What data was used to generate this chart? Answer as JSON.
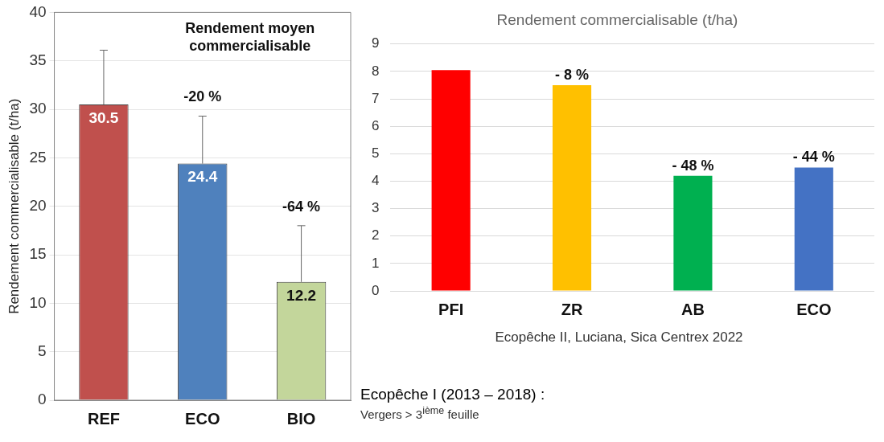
{
  "chart_data": [
    {
      "type": "bar",
      "title": "Rendement moyen commercialisable",
      "ylabel": "Rendement commercialisable (t/ha)",
      "categories": [
        "REF",
        "ECO",
        "BIO"
      ],
      "values": [
        30.5,
        24.4,
        12.2
      ],
      "colors": [
        "#c0504d",
        "#4f81bd",
        "#c3d69b"
      ],
      "errors": [
        [
          30.5,
          36.1
        ],
        [
          24.4,
          29.3
        ],
        [
          12.2,
          18.0
        ]
      ],
      "data_labels": true,
      "ylim": [
        0,
        40
      ],
      "yticks": [
        0,
        5,
        10,
        15,
        20,
        25,
        30,
        35,
        40
      ],
      "grid": "y",
      "legend": false,
      "annotations": [
        {
          "text": "-20 %",
          "x": "ECO",
          "y": 29.3
        },
        {
          "text": "-64 %",
          "x": "BIO",
          "y": 18.0
        },
        "Ecopêche I (2013 – 2018) :",
        "Vergers > 3$^{ième}$ feuille"
      ]
    },
    {
      "type": "bar",
      "title": "Rendement commercialisable (t/ha)",
      "categories": [
        "PFI",
        "ZR",
        "AB",
        "ECO"
      ],
      "values": [
        8.05,
        7.5,
        4.2,
        4.5
      ],
      "colors": [
        "#ff0000",
        "#ffc000",
        "#00b050",
        "#4472c4"
      ],
      "ylim": [
        0,
        9
      ],
      "yticks": [
        0,
        1,
        2,
        3,
        4,
        5,
        6,
        7,
        8,
        9
      ],
      "grid": "y",
      "legend": false,
      "annotations": [
        {
          "text": "- 8 %",
          "x": "ZR",
          "y": 7.5
        },
        {
          "text": "- 48 %",
          "x": "AB",
          "y": 4.2
        },
        {
          "text": "- 44 %",
          "x": "ECO",
          "y": 4.5
        },
        "Ecopêche II, Luciana, Sica Centrex 2022"
      ]
    }
  ]
}
